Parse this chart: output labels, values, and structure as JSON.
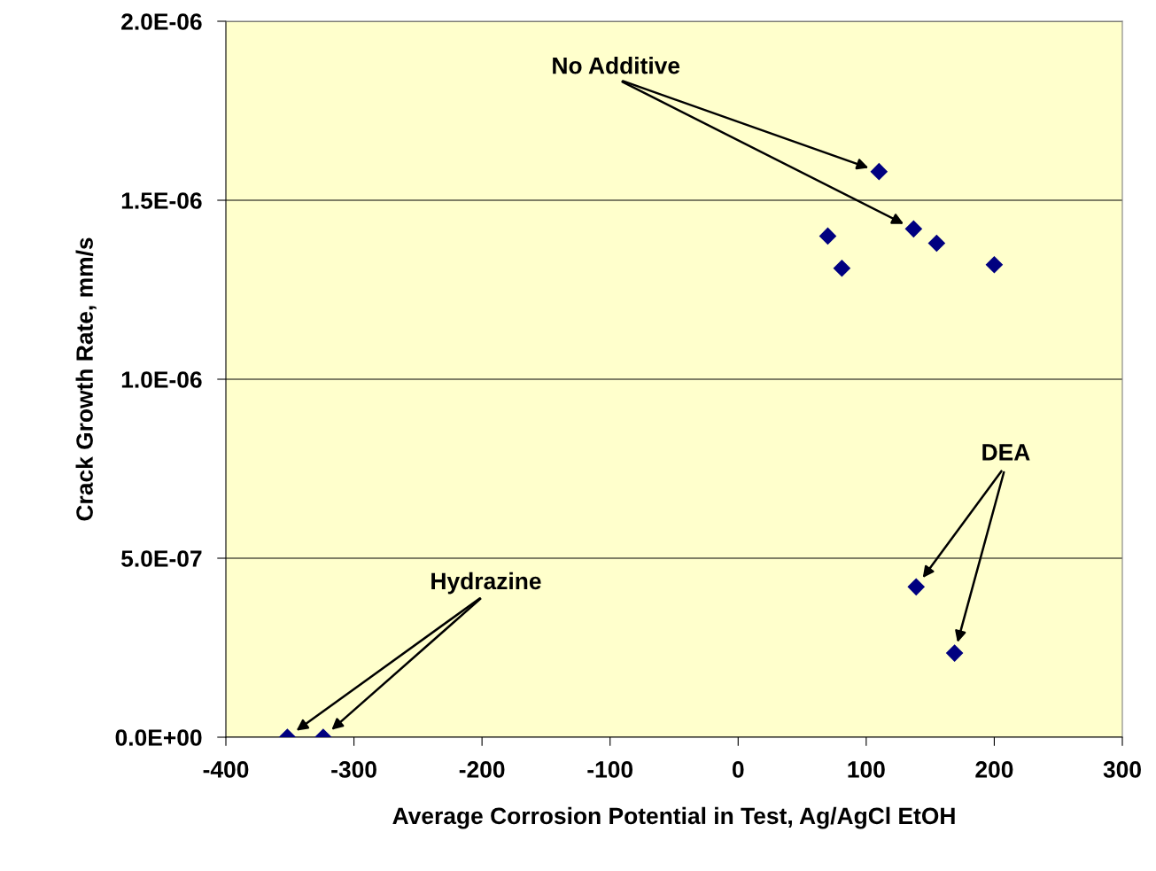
{
  "chart_data": {
    "type": "scatter",
    "xlabel": "Average Corrosion Potential in Test, Ag/AgCl EtOH",
    "ylabel": "Crack Growth Rate, mm/s",
    "x": [
      110,
      70,
      81,
      137,
      155,
      200,
      139,
      169,
      -352,
      -324
    ],
    "values": [
      1.58e-06,
      1.4e-06,
      1.31e-06,
      1.42e-06,
      1.38e-06,
      1.32e-06,
      4.2e-07,
      2.35e-07,
      0,
      0
    ],
    "color": "#000080",
    "marker": "diamond",
    "grid": "y",
    "xlim": [
      -400,
      300
    ],
    "xticks": [
      -400,
      -300,
      -200,
      -100,
      0,
      100,
      200,
      300
    ],
    "ylim": [
      0,
      2e-06
    ],
    "yticks": [
      {
        "value": 0,
        "label": "0.0E+00"
      },
      {
        "value": 5e-07,
        "label": "5.0E-07"
      },
      {
        "value": 1e-06,
        "label": "1.0E-06"
      },
      {
        "value": 1.5e-06,
        "label": "1.5E-06"
      },
      {
        "value": 2e-06,
        "label": "2.0E-06"
      }
    ],
    "annotations": [
      "No Additive",
      "DEA",
      "Hydrazine"
    ]
  }
}
